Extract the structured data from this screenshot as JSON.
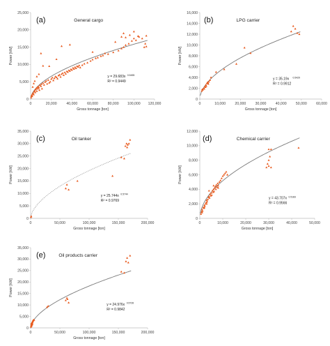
{
  "colors": {
    "marker": "#e8591c",
    "trend": "#7a7a7a",
    "axis": "#bdbdbd"
  },
  "chart_data": [
    {
      "type": "scatter",
      "panel_label": "(a)",
      "title": "General cargo",
      "xlabel": "Gross tonnage [ton]",
      "ylabel": "Power [kW]",
      "xlim": [
        0,
        120000
      ],
      "ylim": [
        0,
        25000
      ],
      "xticks": [
        "0",
        "20,000",
        "40,000",
        "60,000",
        "80,000",
        "100,000",
        "120,000"
      ],
      "yticks": [
        "0",
        "5,000",
        "10,000",
        "15,000",
        "20,000",
        "25,000"
      ],
      "trend": {
        "a": 29.683,
        "b": 0.5455
      },
      "equation": "y = 29.683x",
      "equation_exponent": "0.5455",
      "r2": "R² = 0.9449",
      "points": [
        [
          500,
          400
        ],
        [
          800,
          900
        ],
        [
          1200,
          1200
        ],
        [
          1500,
          800
        ],
        [
          2000,
          1500
        ],
        [
          2500,
          1800
        ],
        [
          3000,
          1300
        ],
        [
          3500,
          2200
        ],
        [
          4000,
          2500
        ],
        [
          4500,
          1900
        ],
        [
          5000,
          2800
        ],
        [
          5500,
          3100
        ],
        [
          6000,
          2300
        ],
        [
          6500,
          3400
        ],
        [
          7000,
          3000
        ],
        [
          7500,
          3600
        ],
        [
          8000,
          3300
        ],
        [
          8500,
          2600
        ],
        [
          9000,
          4000
        ],
        [
          10000,
          3700
        ],
        [
          10500,
          4300
        ],
        [
          11000,
          3000
        ],
        [
          12000,
          4600
        ],
        [
          13000,
          4100
        ],
        [
          14000,
          4900
        ],
        [
          15000,
          5200
        ],
        [
          16000,
          4400
        ],
        [
          17000,
          5500
        ],
        [
          18000,
          4700
        ],
        [
          19000,
          5000
        ],
        [
          20000,
          5800
        ],
        [
          21000,
          6200
        ],
        [
          22000,
          5400
        ],
        [
          23000,
          6000
        ],
        [
          24000,
          6500
        ],
        [
          25000,
          6300
        ],
        [
          26000,
          5900
        ],
        [
          27000,
          6800
        ],
        [
          28000,
          7000
        ],
        [
          29000,
          6400
        ],
        [
          30000,
          7200
        ],
        [
          31000,
          7500
        ],
        [
          32000,
          6900
        ],
        [
          33000,
          7700
        ],
        [
          34000,
          7300
        ],
        [
          35000,
          8000
        ],
        [
          36000,
          7800
        ],
        [
          37000,
          8300
        ],
        [
          38000,
          8100
        ],
        [
          39000,
          8600
        ],
        [
          40000,
          8400
        ],
        [
          41000,
          9000
        ],
        [
          42000,
          8700
        ],
        [
          43000,
          9200
        ],
        [
          44000,
          8900
        ],
        [
          45000,
          9500
        ],
        [
          46000,
          9300
        ],
        [
          47000,
          9700
        ],
        [
          48000,
          9100
        ],
        [
          50000,
          9800
        ],
        [
          52000,
          10200
        ],
        [
          55000,
          10500
        ],
        [
          58000,
          11000
        ],
        [
          60000,
          11400
        ],
        [
          63000,
          11800
        ],
        [
          65000,
          12000
        ],
        [
          68000,
          12400
        ],
        [
          70000,
          12600
        ],
        [
          75000,
          13000
        ],
        [
          80000,
          13500
        ],
        [
          85000,
          14000
        ],
        [
          88000,
          14600
        ],
        [
          90000,
          15000
        ],
        [
          92000,
          15600
        ],
        [
          95000,
          16000
        ],
        [
          98000,
          16800
        ],
        [
          100000,
          17500
        ],
        [
          102000,
          17000
        ],
        [
          105000,
          18000
        ],
        [
          108000,
          17500
        ],
        [
          110000,
          15000
        ],
        [
          111000,
          16000
        ],
        [
          112000,
          15200
        ],
        [
          90000,
          19000
        ],
        [
          88000,
          18000
        ],
        [
          92000,
          17800
        ],
        [
          96000,
          18500
        ],
        [
          100000,
          19500
        ],
        [
          104000,
          18200
        ],
        [
          112000,
          18300
        ],
        [
          30000,
          15300
        ],
        [
          38000,
          15700
        ],
        [
          60000,
          13600
        ],
        [
          72000,
          13200
        ],
        [
          82000,
          16500
        ],
        [
          18000,
          9500
        ],
        [
          10000,
          13200
        ],
        [
          12000,
          9600
        ],
        [
          25000,
          11500
        ],
        [
          4000,
          5200
        ],
        [
          6000,
          6500
        ],
        [
          8000,
          7200
        ],
        [
          3000,
          4500
        ],
        [
          2000,
          3500
        ]
      ]
    },
    {
      "type": "scatter",
      "panel_label": "(b)",
      "title": "LPG carrier",
      "xlabel": "Gross tonnage [ton]",
      "ylabel": "Power [kW]",
      "xlim": [
        0,
        60000
      ],
      "ylim": [
        0,
        16000
      ],
      "xticks": [
        "0",
        "10,000",
        "20,000",
        "30,000",
        "40,000",
        "50,000",
        "60,000"
      ],
      "yticks": [
        "0",
        "2,000",
        "4,000",
        "6,000",
        "8,000",
        "10,000",
        "12,000",
        "14,000",
        "16,000"
      ],
      "trend": {
        "a": 35.19,
        "b": 0.5429
      },
      "equation": "y = 35.19x",
      "equation_exponent": "0.5429",
      "r2": "R² = 0.9912",
      "points": [
        [
          1000,
          1500
        ],
        [
          1200,
          1800
        ],
        [
          1500,
          1700
        ],
        [
          2000,
          2000
        ],
        [
          2500,
          2300
        ],
        [
          3000,
          2600
        ],
        [
          3200,
          2400
        ],
        [
          3500,
          2900
        ],
        [
          4000,
          3000
        ],
        [
          4200,
          2800
        ],
        [
          4500,
          3200
        ],
        [
          5000,
          3500
        ],
        [
          5500,
          4000
        ],
        [
          2800,
          2200
        ],
        [
          3800,
          3100
        ],
        [
          2200,
          1900
        ],
        [
          8000,
          5000
        ],
        [
          12000,
          5500
        ],
        [
          18000,
          6500
        ],
        [
          22000,
          9500
        ],
        [
          25000,
          8500
        ],
        [
          45000,
          12500
        ],
        [
          46000,
          13500
        ],
        [
          47000,
          13000
        ],
        [
          48000,
          12200
        ],
        [
          49000,
          12000
        ]
      ]
    },
    {
      "type": "scatter",
      "panel_label": "(c)",
      "title": "Oil tanker",
      "xlabel": "Gross tonnage [ton]",
      "ylabel": "Power [kW]",
      "xlim": [
        0,
        200000
      ],
      "ylim": [
        0,
        35000
      ],
      "xticks": [
        "0",
        "50,000",
        "100,000",
        "150,000",
        "200,000"
      ],
      "yticks": [
        "0",
        "5,000",
        "10,000",
        "15,000",
        "20,000",
        "25,000",
        "30,000",
        "35,000"
      ],
      "trend": {
        "a": 25.744,
        "b": 0.5744
      },
      "equation": "y = 25.744x",
      "equation_exponent": "0.5744",
      "r2": "R² = 0.9769",
      "points": [
        [
          500,
          500
        ],
        [
          1000,
          800
        ],
        [
          60000,
          12000
        ],
        [
          62000,
          13500
        ],
        [
          65000,
          11500
        ],
        [
          80000,
          15000
        ],
        [
          140000,
          17000
        ],
        [
          155000,
          24500
        ],
        [
          160000,
          24000
        ],
        [
          162000,
          29000
        ],
        [
          164000,
          30000
        ],
        [
          165000,
          28500
        ],
        [
          166000,
          29500
        ],
        [
          168000,
          30000
        ],
        [
          170000,
          31500
        ]
      ]
    },
    {
      "type": "scatter",
      "panel_label": "(d)",
      "title": "Chemical carrier",
      "xlabel": "Gross tonnage [ton]",
      "ylabel": "Power [kW]",
      "xlim": [
        0,
        50000
      ],
      "ylim": [
        0,
        12000
      ],
      "xticks": [
        "0",
        "10,000",
        "20,000",
        "30,000",
        "40,000",
        "50,000"
      ],
      "yticks": [
        "0",
        "2,000",
        "4,000",
        "6,000",
        "8,000",
        "10,000",
        "12,000"
      ],
      "trend": {
        "a": 43.707,
        "b": 0.5183
      },
      "equation": "y = 43.707x",
      "equation_exponent": "0.5183",
      "r2": "R² = 0.9566",
      "points": [
        [
          500,
          600
        ],
        [
          800,
          900
        ],
        [
          1000,
          1200
        ],
        [
          1200,
          1000
        ],
        [
          1500,
          1500
        ],
        [
          1800,
          1400
        ],
        [
          2000,
          1800
        ],
        [
          2200,
          1700
        ],
        [
          2500,
          2000
        ],
        [
          2800,
          2200
        ],
        [
          3000,
          2500
        ],
        [
          3200,
          2300
        ],
        [
          3500,
          2600
        ],
        [
          3800,
          2900
        ],
        [
          4000,
          3000
        ],
        [
          4200,
          2800
        ],
        [
          4500,
          3300
        ],
        [
          4800,
          3100
        ],
        [
          5000,
          3500
        ],
        [
          5200,
          3200
        ],
        [
          5500,
          3800
        ],
        [
          5800,
          3600
        ],
        [
          6000,
          4000
        ],
        [
          6200,
          3700
        ],
        [
          6500,
          4200
        ],
        [
          6800,
          4400
        ],
        [
          7000,
          4000
        ],
        [
          7200,
          4600
        ],
        [
          7500,
          4300
        ],
        [
          7800,
          4800
        ],
        [
          8000,
          4500
        ],
        [
          8500,
          5000
        ],
        [
          9000,
          5200
        ],
        [
          9500,
          5500
        ],
        [
          10000,
          5800
        ],
        [
          10500,
          6000
        ],
        [
          11000,
          6200
        ],
        [
          11500,
          6400
        ],
        [
          12000,
          6000
        ],
        [
          4000,
          3800
        ],
        [
          6000,
          4500
        ],
        [
          8000,
          4200
        ],
        [
          29000,
          7000
        ],
        [
          29500,
          7500
        ],
        [
          30000,
          8000
        ],
        [
          30000,
          9500
        ],
        [
          30500,
          8500
        ],
        [
          31000,
          9500
        ],
        [
          31000,
          7000
        ],
        [
          30000,
          7200
        ],
        [
          43000,
          9700
        ],
        [
          2000,
          1500
        ],
        [
          1000,
          800
        ],
        [
          3000,
          2000
        ]
      ]
    },
    {
      "type": "scatter",
      "panel_label": "(e)",
      "title": "Oil products carrier",
      "xlabel": "Gross tonnage [ton]",
      "ylabel": "Power [kW]",
      "xlim": [
        0,
        200000
      ],
      "ylim": [
        0,
        35000
      ],
      "xticks": [
        "0",
        "50,000",
        "100,000",
        "150,000",
        "200,000"
      ],
      "yticks": [
        "0",
        "5,000",
        "10,000",
        "15,000",
        "20,000",
        "25,000",
        "30,000",
        "35,000"
      ],
      "trend": {
        "a": 24.976,
        "b": 0.5728
      },
      "equation": "y = 24.976x",
      "equation_exponent": "0.5728",
      "r2": "R² = 0.9842",
      "points": [
        [
          500,
          400
        ],
        [
          800,
          700
        ],
        [
          1000,
          1000
        ],
        [
          1200,
          1300
        ],
        [
          1500,
          800
        ],
        [
          1800,
          1600
        ],
        [
          2000,
          2000
        ],
        [
          2200,
          1800
        ],
        [
          2500,
          2300
        ],
        [
          2800,
          2100
        ],
        [
          3000,
          2600
        ],
        [
          3200,
          2400
        ],
        [
          3500,
          2900
        ],
        [
          4000,
          3200
        ],
        [
          4500,
          3000
        ],
        [
          5000,
          3500
        ],
        [
          6000,
          3400
        ],
        [
          1000,
          1800
        ],
        [
          2000,
          1200
        ],
        [
          3000,
          1500
        ],
        [
          28000,
          9000
        ],
        [
          30000,
          9500
        ],
        [
          60000,
          12000
        ],
        [
          62000,
          13000
        ],
        [
          65000,
          11000
        ],
        [
          63000,
          12500
        ],
        [
          155000,
          24500
        ],
        [
          160000,
          24000
        ],
        [
          163000,
          29000
        ],
        [
          165000,
          30500
        ],
        [
          167000,
          28500
        ],
        [
          170000,
          31500
        ]
      ]
    }
  ]
}
